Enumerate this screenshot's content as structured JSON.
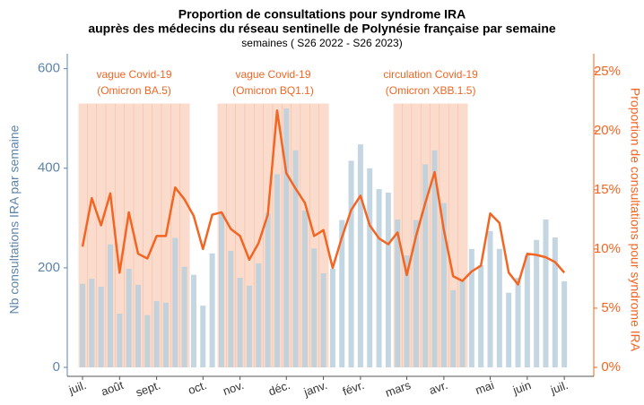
{
  "chart_data": {
    "type": "bar_line",
    "title": [
      "Proportion de consultations pour syndrome IRA",
      "auprès des médecins du réseau sentinelle de Polynésie française par semaine"
    ],
    "subtitle": "semaines ( S26 2022 - S26 2023)",
    "y_label": "Nb consultations IRA par semaine",
    "y2_label": "Proportion de consultations pour syndrome IRA",
    "categories": [
      "juil.",
      null,
      null,
      null,
      "août",
      null,
      null,
      null,
      "sept.",
      null,
      null,
      null,
      null,
      "oct.",
      null,
      null,
      null,
      "nov.",
      null,
      null,
      null,
      null,
      "déc.",
      null,
      null,
      null,
      "janv.",
      null,
      null,
      null,
      "févr.",
      null,
      null,
      null,
      null,
      "mars",
      null,
      null,
      null,
      "avr.",
      null,
      null,
      null,
      null,
      "mai",
      null,
      null,
      null,
      "juin",
      null,
      null,
      null,
      "juil."
    ],
    "series": [
      {
        "name": "Nb consultations IRA",
        "type": "bar",
        "color": "#b9cfdc",
        "values": [
          168,
          178,
          162,
          247,
          108,
          198,
          166,
          105,
          133,
          130,
          260,
          202,
          186,
          124,
          229,
          310,
          234,
          180,
          164,
          209,
          310,
          388,
          520,
          436,
          315,
          239,
          189,
          198,
          296,
          415,
          448,
          400,
          358,
          351,
          297,
          225,
          296,
          408,
          436,
          330,
          155,
          175,
          238,
          205,
          274,
          238,
          150,
          180,
          225,
          256,
          297,
          261,
          173
        ]
      },
      {
        "name": "Proportion",
        "type": "line",
        "axis": "y2",
        "color": "#f26522",
        "values": [
          10.2,
          14.3,
          12.0,
          14.7,
          8.0,
          13.1,
          9.6,
          9.2,
          11.1,
          11.1,
          15.2,
          14.2,
          12.8,
          10.0,
          12.9,
          13.1,
          11.7,
          11.1,
          9.1,
          10.5,
          12.9,
          21.7,
          16.4,
          15.1,
          13.9,
          11.1,
          11.6,
          8.4,
          11.0,
          13.3,
          14.5,
          12.0,
          10.9,
          10.4,
          11.4,
          7.8,
          11.1,
          13.9,
          16.5,
          11.6,
          7.7,
          7.3,
          8.1,
          8.6,
          13.0,
          12.2,
          8.0,
          7.0,
          9.6,
          9.5,
          9.3,
          8.9,
          8.0
        ]
      }
    ],
    "ylim": [
      -18,
      630
    ],
    "yticks": [
      0,
      200,
      400,
      600
    ],
    "y2lim": [
      -0.76,
      26.5
    ],
    "y2ticks": [
      {
        "value": 0,
        "label": "0%"
      },
      {
        "value": 5,
        "label": "5%"
      },
      {
        "value": 10,
        "label": "10%"
      },
      {
        "value": 15,
        "label": "15%"
      },
      {
        "value": 20,
        "label": "20%"
      },
      {
        "value": 25,
        "label": "25%"
      }
    ],
    "annotations": [
      {
        "lines": [
          "vague Covid-19",
          "(Omicron BA.5)"
        ],
        "color": "#fbdccc"
      },
      {
        "lines": [
          "vague Covid-19",
          "(Omicron BQ1.1)"
        ],
        "color": "#fbdccc"
      },
      {
        "lines": [
          "circulation Covid-19",
          "(Omicron XBB.1.5)"
        ],
        "color": "#fbdccc"
      }
    ]
  }
}
